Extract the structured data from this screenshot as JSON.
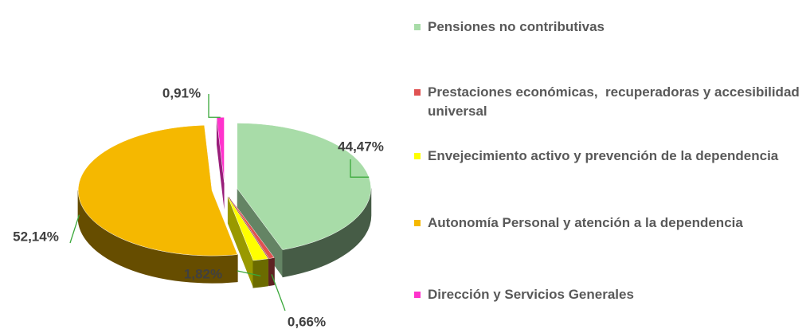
{
  "chart_data": {
    "type": "pie3d",
    "categories": [
      "Pensiones no contributivas",
      "Prestaciones económicas,  recuperadoras y accesibilidad universal",
      "Envejecimiento activo y prevención de la dependencia",
      "Autonomía Personal y atención a la dependencia",
      "Dirección y Servicios Generales"
    ],
    "values": [
      44.47,
      0.66,
      1.82,
      52.14,
      0.91
    ],
    "value_labels": [
      "44,47%",
      "0,66%",
      "1,82%",
      "52,14%",
      "0,91%"
    ],
    "colors": [
      "#a8dca8",
      "#e05252",
      "#ffff00",
      "#f5b800",
      "#ff33cc"
    ],
    "legend": "right"
  }
}
